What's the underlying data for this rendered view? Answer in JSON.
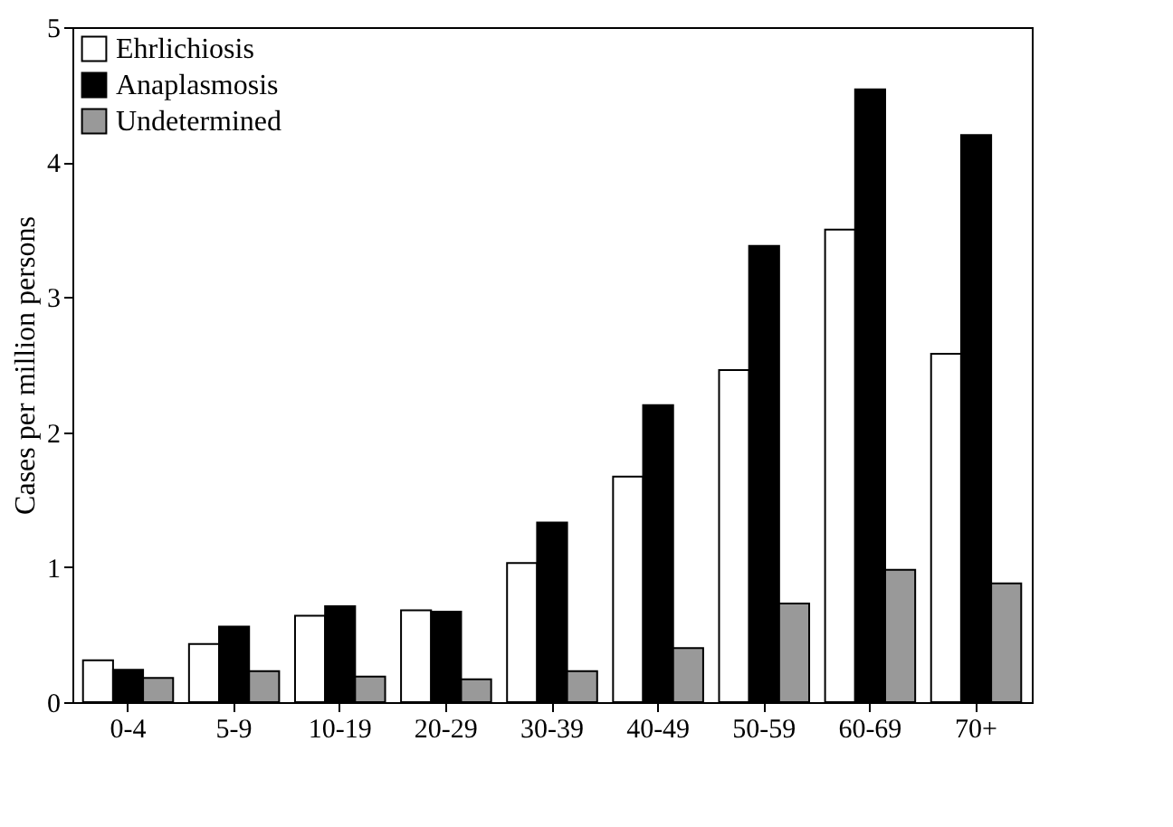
{
  "chart_data": {
    "type": "bar",
    "ylabel": "Cases per million persons",
    "categories": [
      "0-4",
      "5-9",
      "10-19",
      "20-29",
      "30-39",
      "40-49",
      "50-59",
      "60-69",
      "70+"
    ],
    "series": [
      {
        "name": "Ehrlichiosis",
        "color": "#ffffff",
        "values": [
          0.31,
          0.43,
          0.64,
          0.68,
          1.03,
          1.67,
          2.46,
          3.5,
          2.58
        ]
      },
      {
        "name": "Anaplasmosis",
        "color": "#000000",
        "values": [
          0.24,
          0.56,
          0.71,
          0.67,
          1.33,
          2.2,
          3.38,
          4.54,
          4.2
        ]
      },
      {
        "name": "Undetermined",
        "color": "#999999",
        "values": [
          0.18,
          0.23,
          0.19,
          0.17,
          0.23,
          0.4,
          0.73,
          0.98,
          0.88
        ]
      }
    ],
    "ylim": [
      0,
      5
    ],
    "yticks": [
      0,
      1,
      2,
      3,
      4,
      5
    ],
    "grid": false,
    "legend": "top left"
  }
}
